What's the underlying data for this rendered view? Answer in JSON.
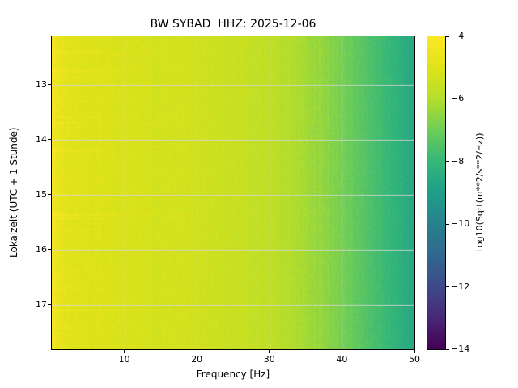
{
  "chart_data": {
    "type": "heatmap",
    "subtype": "spectrogram",
    "title": "BW SYBAD  HHZ: 2025-12-06",
    "xlabel": "Frequency [Hz]",
    "ylabel": "Lokalzeit (UTC + 1 Stunde)",
    "x_range": [
      0,
      50
    ],
    "y_range": [
      12.12,
      17.81
    ],
    "x_ticks": {
      "values": [
        10,
        20,
        30,
        40,
        50
      ],
      "labels": [
        "10",
        "20",
        "30",
        "40",
        "50"
      ]
    },
    "y_ticks": {
      "values": [
        13,
        14,
        15,
        16,
        17
      ],
      "labels": [
        "13",
        "14",
        "15",
        "16",
        "17"
      ]
    },
    "grid": true,
    "grid_color": "#d6d6d6",
    "background": "#ffffff",
    "text_color": "#000000",
    "colormap": {
      "name": "viridis",
      "stops": [
        "#440154",
        "#482878",
        "#3e4a89",
        "#31688e",
        "#26828e",
        "#1f9e89",
        "#35b779",
        "#6dcd59",
        "#b4de2c",
        "#dfe318",
        "#fde725"
      ]
    },
    "colorbar": {
      "label": "Log10(Sqrt(m**2/s**2/Hz))",
      "vmin": -14,
      "vmax": -4,
      "tick_values": [
        -4,
        -6,
        -8,
        -10,
        -12,
        -14
      ],
      "tick_labels": [
        "−4",
        "−6",
        "−8",
        "−10",
        "−12",
        "−14"
      ]
    },
    "spectrum_profile": {
      "description": "Mean log10 sqrt-PSD versus frequency; field is roughly constant over time with bright transient horizontal streaks below ~20 Hz and a bright column at the lowest frequencies",
      "frequencies_hz": [
        0,
        0.5,
        1.5,
        3,
        6,
        10,
        15,
        20,
        25,
        30,
        34,
        38,
        42,
        46,
        50
      ],
      "mean_log_amplitude": [
        -4.2,
        -4.5,
        -4.8,
        -4.95,
        -5.05,
        -5.15,
        -5.25,
        -5.35,
        -5.5,
        -5.75,
        -6.1,
        -6.55,
        -7.2,
        -7.9,
        -8.6
      ]
    },
    "texture": {
      "seed": 42,
      "noise_std_low_freq": 0.35,
      "noise_std_high_freq": 0.18,
      "streak_rate": 0.1,
      "streak_max_boost": 0.75,
      "streak_freq_decay_hz": 9
    }
  }
}
